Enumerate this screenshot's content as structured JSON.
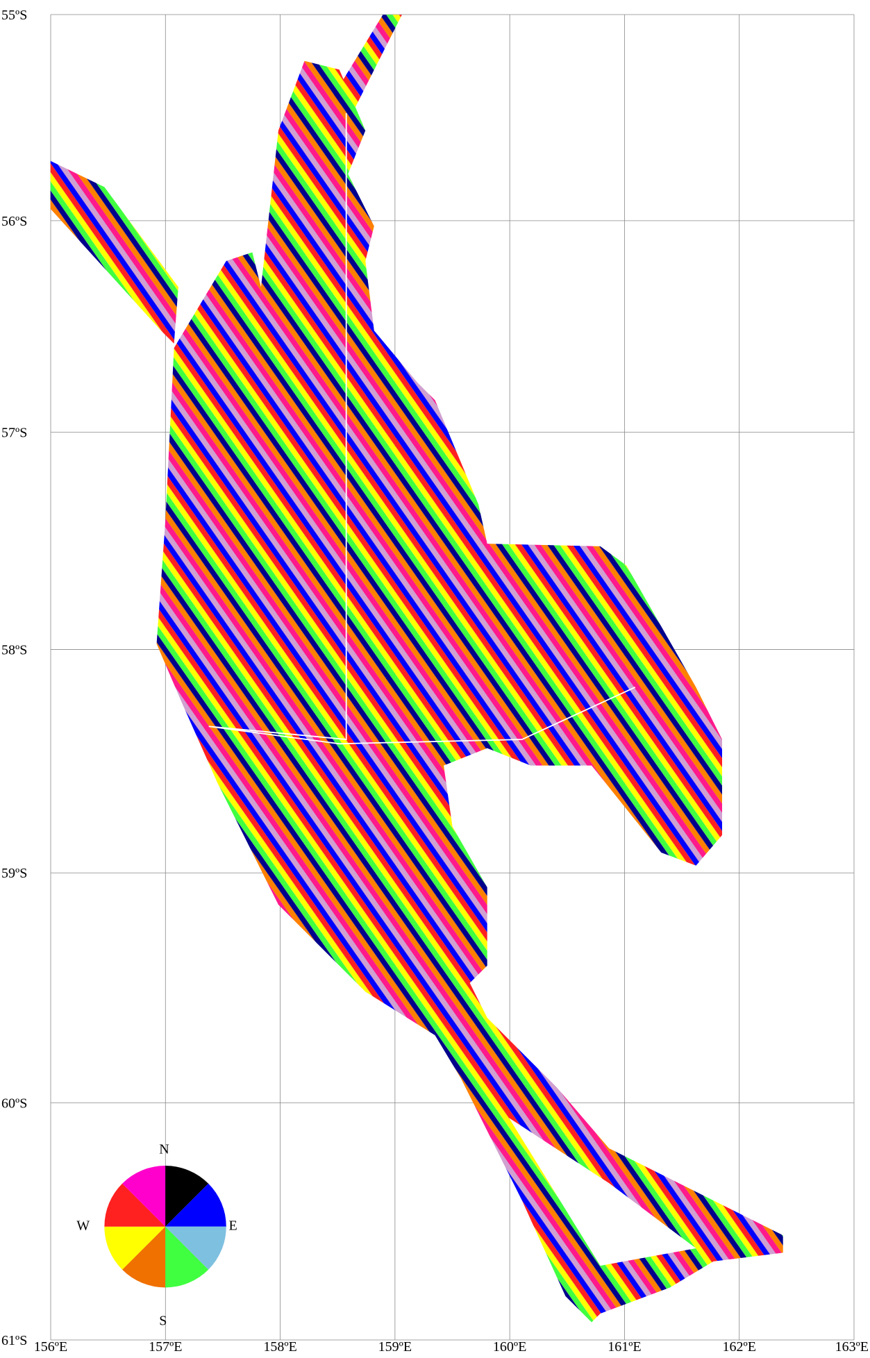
{
  "map": {
    "latitude_labels": [
      {
        "value": 55,
        "label": "55ºS"
      },
      {
        "value": 56,
        "label": "56ºS"
      },
      {
        "value": 57,
        "label": "57ºS"
      },
      {
        "value": 58,
        "label": "58ºS"
      },
      {
        "value": 59,
        "label": "59ºS"
      },
      {
        "value": 60,
        "label": "60ºS"
      },
      {
        "value": 61,
        "label": "61ºS"
      }
    ],
    "longitude_labels": [
      {
        "value": 156,
        "label": "156ºE"
      },
      {
        "value": 157,
        "label": "157ºE"
      },
      {
        "value": 158,
        "label": "158ºE"
      },
      {
        "value": 159,
        "label": "159ºE"
      },
      {
        "value": 160,
        "label": "160ºE"
      },
      {
        "value": 161,
        "label": "161ºE"
      },
      {
        "value": 162,
        "label": "162ºE"
      },
      {
        "value": 163,
        "label": "163ºE"
      }
    ],
    "compass": {
      "north": "N",
      "east": "E",
      "south": "S",
      "west": "W"
    }
  }
}
